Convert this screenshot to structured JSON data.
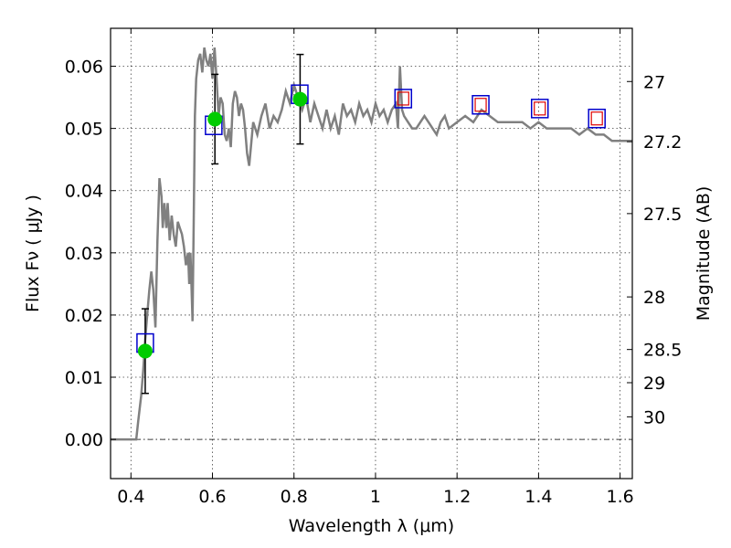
{
  "chart_data": {
    "type": "line",
    "title": "",
    "xlabel": "Wavelength  λ (μm)",
    "ylabel": "Flux  Fν  ( μJy )",
    "y2label": "Magnitude (AB)",
    "xlim": [
      0.35,
      1.63
    ],
    "ylim": [
      -0.0063,
      0.0661
    ],
    "grid": true,
    "legend": "none",
    "x_ticks": [
      {
        "value": 0.4,
        "label": "0.4"
      },
      {
        "value": 0.6,
        "label": "0.6"
      },
      {
        "value": 0.8,
        "label": "0.8"
      },
      {
        "value": 1.0,
        "label": "1"
      },
      {
        "value": 1.2,
        "label": "1.2"
      },
      {
        "value": 1.4,
        "label": "1.4"
      },
      {
        "value": 1.6,
        "label": "1.6"
      }
    ],
    "y_ticks": [
      {
        "value": 0.0,
        "label": "0.00"
      },
      {
        "value": 0.01,
        "label": "0.01"
      },
      {
        "value": 0.02,
        "label": "0.02"
      },
      {
        "value": 0.03,
        "label": "0.03"
      },
      {
        "value": 0.04,
        "label": "0.04"
      },
      {
        "value": 0.05,
        "label": "0.05"
      },
      {
        "value": 0.06,
        "label": "0.06"
      }
    ],
    "y2_ticks": [
      {
        "mag": 27,
        "label": "27"
      },
      {
        "mag": 27.2,
        "label": "27.2"
      },
      {
        "mag": 27.5,
        "label": "27.5"
      },
      {
        "mag": 28,
        "label": "28"
      },
      {
        "mag": 28.5,
        "label": "28.5"
      },
      {
        "mag": 29,
        "label": "29"
      },
      {
        "mag": 30,
        "label": "30"
      }
    ],
    "colors": {
      "spectrum": "#808080",
      "model_box": "#0000cc",
      "observed_point": "#00cc00",
      "predicted_box": "#dd0000",
      "error_bar": "#000000",
      "zero_line": "#000000"
    },
    "spectrum": {
      "x": [
        0.35,
        0.413,
        0.418,
        0.425,
        0.43,
        0.435,
        0.44,
        0.445,
        0.45,
        0.455,
        0.46,
        0.465,
        0.47,
        0.475,
        0.478,
        0.482,
        0.487,
        0.49,
        0.495,
        0.5,
        0.505,
        0.51,
        0.515,
        0.52,
        0.525,
        0.53,
        0.535,
        0.54,
        0.543,
        0.546,
        0.548,
        0.551,
        0.554,
        0.557,
        0.56,
        0.565,
        0.57,
        0.575,
        0.58,
        0.585,
        0.59,
        0.595,
        0.6,
        0.605,
        0.61,
        0.615,
        0.62,
        0.625,
        0.63,
        0.635,
        0.64,
        0.645,
        0.65,
        0.655,
        0.66,
        0.665,
        0.67,
        0.675,
        0.68,
        0.685,
        0.69,
        0.7,
        0.71,
        0.72,
        0.73,
        0.74,
        0.75,
        0.76,
        0.77,
        0.78,
        0.79,
        0.8,
        0.81,
        0.82,
        0.83,
        0.84,
        0.85,
        0.86,
        0.87,
        0.88,
        0.89,
        0.9,
        0.91,
        0.92,
        0.93,
        0.94,
        0.95,
        0.96,
        0.97,
        0.98,
        0.99,
        1.0,
        1.01,
        1.02,
        1.03,
        1.04,
        1.05,
        1.055,
        1.06,
        1.065,
        1.07,
        1.08,
        1.09,
        1.1,
        1.11,
        1.12,
        1.13,
        1.14,
        1.15,
        1.16,
        1.17,
        1.18,
        1.2,
        1.22,
        1.24,
        1.26,
        1.28,
        1.3,
        1.32,
        1.34,
        1.36,
        1.38,
        1.4,
        1.42,
        1.44,
        1.46,
        1.48,
        1.5,
        1.52,
        1.54,
        1.56,
        1.58,
        1.6,
        1.63
      ],
      "y": [
        0.0,
        0.0,
        0.003,
        0.007,
        0.011,
        0.016,
        0.02,
        0.024,
        0.027,
        0.024,
        0.018,
        0.032,
        0.042,
        0.039,
        0.034,
        0.038,
        0.034,
        0.038,
        0.032,
        0.036,
        0.033,
        0.031,
        0.035,
        0.034,
        0.033,
        0.031,
        0.028,
        0.03,
        0.025,
        0.03,
        0.026,
        0.019,
        0.035,
        0.052,
        0.058,
        0.061,
        0.062,
        0.059,
        0.063,
        0.061,
        0.06,
        0.062,
        0.058,
        0.063,
        0.058,
        0.052,
        0.055,
        0.054,
        0.049,
        0.048,
        0.05,
        0.047,
        0.054,
        0.056,
        0.055,
        0.052,
        0.054,
        0.053,
        0.05,
        0.046,
        0.044,
        0.051,
        0.049,
        0.052,
        0.054,
        0.05,
        0.052,
        0.051,
        0.053,
        0.056,
        0.054,
        0.057,
        0.055,
        0.053,
        0.055,
        0.051,
        0.054,
        0.052,
        0.05,
        0.053,
        0.05,
        0.052,
        0.049,
        0.054,
        0.052,
        0.053,
        0.051,
        0.054,
        0.052,
        0.053,
        0.051,
        0.054,
        0.052,
        0.053,
        0.051,
        0.053,
        0.054,
        0.05,
        0.06,
        0.053,
        0.052,
        0.051,
        0.05,
        0.05,
        0.051,
        0.052,
        0.051,
        0.05,
        0.049,
        0.051,
        0.052,
        0.05,
        0.051,
        0.052,
        0.051,
        0.053,
        0.052,
        0.051,
        0.051,
        0.051,
        0.051,
        0.05,
        0.051,
        0.05,
        0.05,
        0.05,
        0.05,
        0.049,
        0.05,
        0.049,
        0.049,
        0.048,
        0.048,
        0.048
      ]
    },
    "model_points": {
      "x": [
        0.435,
        0.603,
        0.814,
        1.068,
        1.258,
        1.403,
        1.543
      ],
      "y": [
        0.0155,
        0.0505,
        0.0555,
        0.0548,
        0.0538,
        0.0532,
        0.0516
      ]
    },
    "predicted_points": {
      "x": [
        1.068,
        1.258,
        1.403,
        1.543
      ],
      "y": [
        0.0548,
        0.0538,
        0.0532,
        0.0516
      ]
    },
    "observed_points": {
      "x": [
        0.435,
        0.606,
        0.815
      ],
      "y": [
        0.0142,
        0.0515,
        0.0547
      ],
      "err": [
        0.0068,
        0.0072,
        0.0072
      ]
    }
  }
}
